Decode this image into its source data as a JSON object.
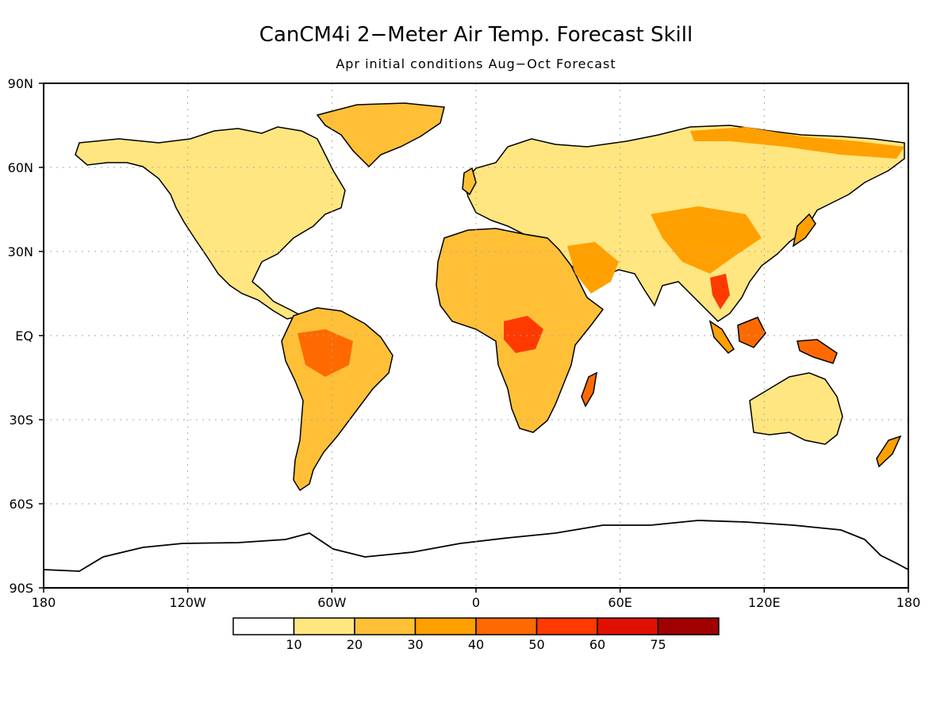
{
  "title": "CanCM4i 2−Meter Air Temp. Forecast Skill",
  "subtitle": "Apr initial conditions  Aug−Oct Forecast",
  "lat_labels": [
    "90N",
    "60N",
    "30N",
    "EQ",
    "30S",
    "60S",
    "90S"
  ],
  "lon_labels": [
    "180",
    "120W",
    "60W",
    "0",
    "60E",
    "120E",
    "180"
  ],
  "legend": {
    "labels": [
      "10",
      "20",
      "30",
      "40",
      "50",
      "60",
      "75"
    ],
    "colors": [
      "#ffffff",
      "#ffe680",
      "#ffc038",
      "#ffa000",
      "#ff6a00",
      "#ff3a00",
      "#e01000",
      "#a00000"
    ]
  },
  "colors": {
    "frame": "#000000",
    "grid": "#aaaaaa",
    "coast": "#000000"
  }
}
